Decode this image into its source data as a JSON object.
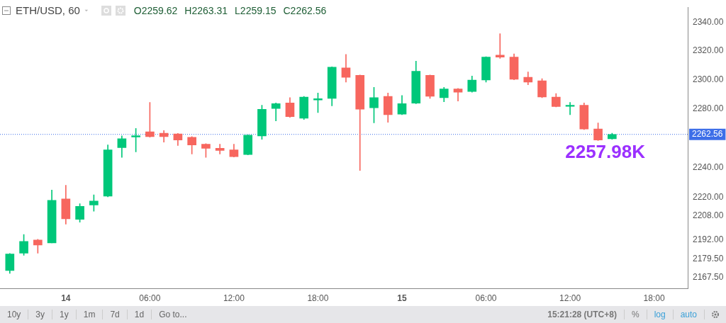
{
  "chart_data": {
    "type": "candlestick",
    "title": "ETH/USD, 60",
    "subtitle": "O2259.62 H2263.31 L2259.15 C2262.56",
    "x": [
      "--01-13T20:00",
      "--01-13T21:00",
      "--01-13T22:00",
      "--01-13T23:00",
      "--01-14T00:00",
      "--01-14T01:00",
      "--01-14T02:00",
      "--01-14T03:00",
      "--01-14T04:00",
      "--01-14T05:00",
      "--01-14T06:00",
      "--01-14T07:00",
      "--01-14T08:00",
      "--01-14T09:00",
      "--01-14T10:00",
      "--01-14T11:00",
      "--01-14T12:00",
      "--01-14T13:00",
      "--01-14T14:00",
      "--01-14T15:00",
      "--01-14T16:00",
      "--01-14T17:00",
      "--01-14T18:00",
      "--01-14T19:00",
      "--01-14T20:00",
      "--01-14T21:00",
      "--01-14T22:00",
      "--01-14T23:00",
      "--01-15T00:00",
      "--01-15T01:00",
      "--01-15T02:00",
      "--01-15T03:00",
      "--01-15T04:00",
      "--01-15T05:00",
      "--01-15T06:00",
      "--01-15T07:00",
      "--01-15T08:00",
      "--01-15T09:00",
      "--01-15T10:00",
      "--01-15T11:00",
      "--01-15T12:00",
      "--01-15T13:00",
      "--01-15T14:00",
      "--01-15T15:00"
    ],
    "ohlc": [
      [
        2171.8,
        2183,
        2170,
        2182.7
      ],
      [
        2183.2,
        2195.5,
        2181.8,
        2190.9
      ],
      [
        2191.8,
        2192.3,
        2183.2,
        2188.6
      ],
      [
        2190,
        2225,
        2190,
        2218.2
      ],
      [
        2219.1,
        2228.2,
        2202.3,
        2205.9
      ],
      [
        2205.5,
        2215.9,
        2203.6,
        2214.1
      ],
      [
        2215,
        2221.8,
        2210.9,
        2217.7
      ],
      [
        2220.9,
        2255.4,
        2220.5,
        2252.1
      ],
      [
        2253.6,
        2261.5,
        2247,
        2259.6
      ],
      [
        2260.8,
        2266.6,
        2250.7,
        2261.6
      ],
      [
        2264.3,
        2284.4,
        2260.6,
        2261
      ],
      [
        2263.4,
        2265.2,
        2257.3,
        2261
      ],
      [
        2262.9,
        2263.2,
        2255,
        2258.7
      ],
      [
        2260.6,
        2261,
        2249.3,
        2255.4
      ],
      [
        2255.9,
        2256.3,
        2247,
        2253.1
      ],
      [
        2253.1,
        2255.9,
        2249.3,
        2251.7
      ],
      [
        2252.1,
        2255.9,
        2247.2,
        2247.5
      ],
      [
        2248.9,
        2262.3,
        2248.6,
        2262
      ],
      [
        2261.5,
        2282.5,
        2259.2,
        2279.7
      ],
      [
        2280.2,
        2284,
        2271.8,
        2283.5
      ],
      [
        2284,
        2287.7,
        2274.2,
        2274.6
      ],
      [
        2273.6,
        2288.6,
        2272.7,
        2288.1
      ],
      [
        2286.1,
        2290.9,
        2277.4,
        2286.9
      ],
      [
        2287.2,
        2309,
        2282.1,
        2308.7
      ],
      [
        2308.2,
        2317.6,
        2298.4,
        2301.7
      ],
      [
        2303.1,
        2303.3,
        2238.2,
        2279.7
      ],
      [
        2280.7,
        2294.7,
        2270.4,
        2287.7
      ],
      [
        2288.6,
        2290.9,
        2270.8,
        2276
      ],
      [
        2276.4,
        2289.1,
        2276,
        2283.5
      ],
      [
        2283.9,
        2312.9,
        2283.5,
        2305.9
      ],
      [
        2303.1,
        2303.3,
        2287.2,
        2288.6
      ],
      [
        2287.7,
        2294.7,
        2284.9,
        2293.7
      ],
      [
        2293.7,
        2294,
        2285.3,
        2291.4
      ],
      [
        2291.9,
        2302.6,
        2291.4,
        2299.8
      ],
      [
        2299.8,
        2316,
        2298.4,
        2315.7
      ],
      [
        2317.1,
        2332.1,
        2314.8,
        2315.7
      ],
      [
        2315.7,
        2318,
        2300,
        2300.3
      ],
      [
        2301.7,
        2305.4,
        2296.5,
        2298.4
      ],
      [
        2299.3,
        2300.7,
        2287.7,
        2288.1
      ],
      [
        2288.1,
        2290.5,
        2281.3,
        2281.6
      ],
      [
        2281.7,
        2284.4,
        2276,
        2282.5
      ],
      [
        2282.5,
        2284,
        2265.8,
        2266.2
      ],
      [
        2266.2,
        2270.4,
        2258.4,
        2258.7
      ],
      [
        2259.62,
        2263.31,
        2259.15,
        2262.56
      ]
    ],
    "colors": [
      "#00c77a",
      "#00c77a",
      "#f7665e",
      "#00c77a",
      "#f7665e",
      "#00c77a",
      "#00c77a",
      "#00c77a",
      "#00c77a",
      "#00c77a",
      "#f7665e",
      "#f7665e",
      "#f7665e",
      "#f7665e",
      "#f7665e",
      "#f7665e",
      "#f7665e",
      "#00c77a",
      "#00c77a",
      "#00c77a",
      "#f7665e",
      "#00c77a",
      "#00c77a",
      "#00c77a",
      "#f7665e",
      "#f7665e",
      "#00c77a",
      "#f7665e",
      "#00c77a",
      "#00c77a",
      "#f7665e",
      "#00c77a",
      "#f7665e",
      "#00c77a",
      "#00c77a",
      "#f7665e",
      "#f7665e",
      "#f7665e",
      "#f7665e",
      "#f7665e",
      "#00c77a",
      "#f7665e",
      "#f7665e",
      "#00c77a"
    ],
    "xlim": [
      "--01-13T19:18",
      "--01-15T20:24"
    ],
    "xticks": [
      {
        "value": "--01-14",
        "label": "14"
      },
      {
        "value": "--01-14T06:00",
        "label": "06:00"
      },
      {
        "value": "--01-14T12:00",
        "label": "12:00"
      },
      {
        "value": "--01-14T18:00",
        "label": "18:00"
      },
      {
        "value": "--01-15",
        "label": "15"
      },
      {
        "value": "--01-15T06:00",
        "label": "06:00"
      },
      {
        "value": "--01-15T12:00",
        "label": "12:00"
      },
      {
        "value": "--01-15T18:00",
        "label": "18:00"
      }
    ],
    "ylim": [
      2160,
      2350.7
    ],
    "yticks": [
      {
        "value": 2167.5,
        "label": "2167.50"
      },
      {
        "value": 2179.5,
        "label": "2179.50"
      },
      {
        "value": 2192,
        "label": "2192.00"
      },
      {
        "value": 2208,
        "label": "2208.00"
      },
      {
        "value": 2220,
        "label": "2220.00"
      },
      {
        "value": 2240,
        "label": "2240.00"
      },
      {
        "value": 2280,
        "label": "2280.00"
      },
      {
        "value": 2300,
        "label": "2300.00"
      },
      {
        "value": 2320,
        "label": "2320.00"
      },
      {
        "value": 2340,
        "label": "2340.00"
      }
    ],
    "log": "y",
    "ref_lines": [
      {
        "axis": "y",
        "value": 2262.56,
        "label": "2262.56",
        "color": "#3d6ee8",
        "line_style": "dotted"
      }
    ],
    "annotations": [
      "2257.98K",
      "10y",
      "3y",
      "1y",
      "1m",
      "7d",
      "1d",
      "Go to...",
      "15:21:28 (UTC+8)",
      "%",
      "log",
      "auto"
    ]
  }
}
